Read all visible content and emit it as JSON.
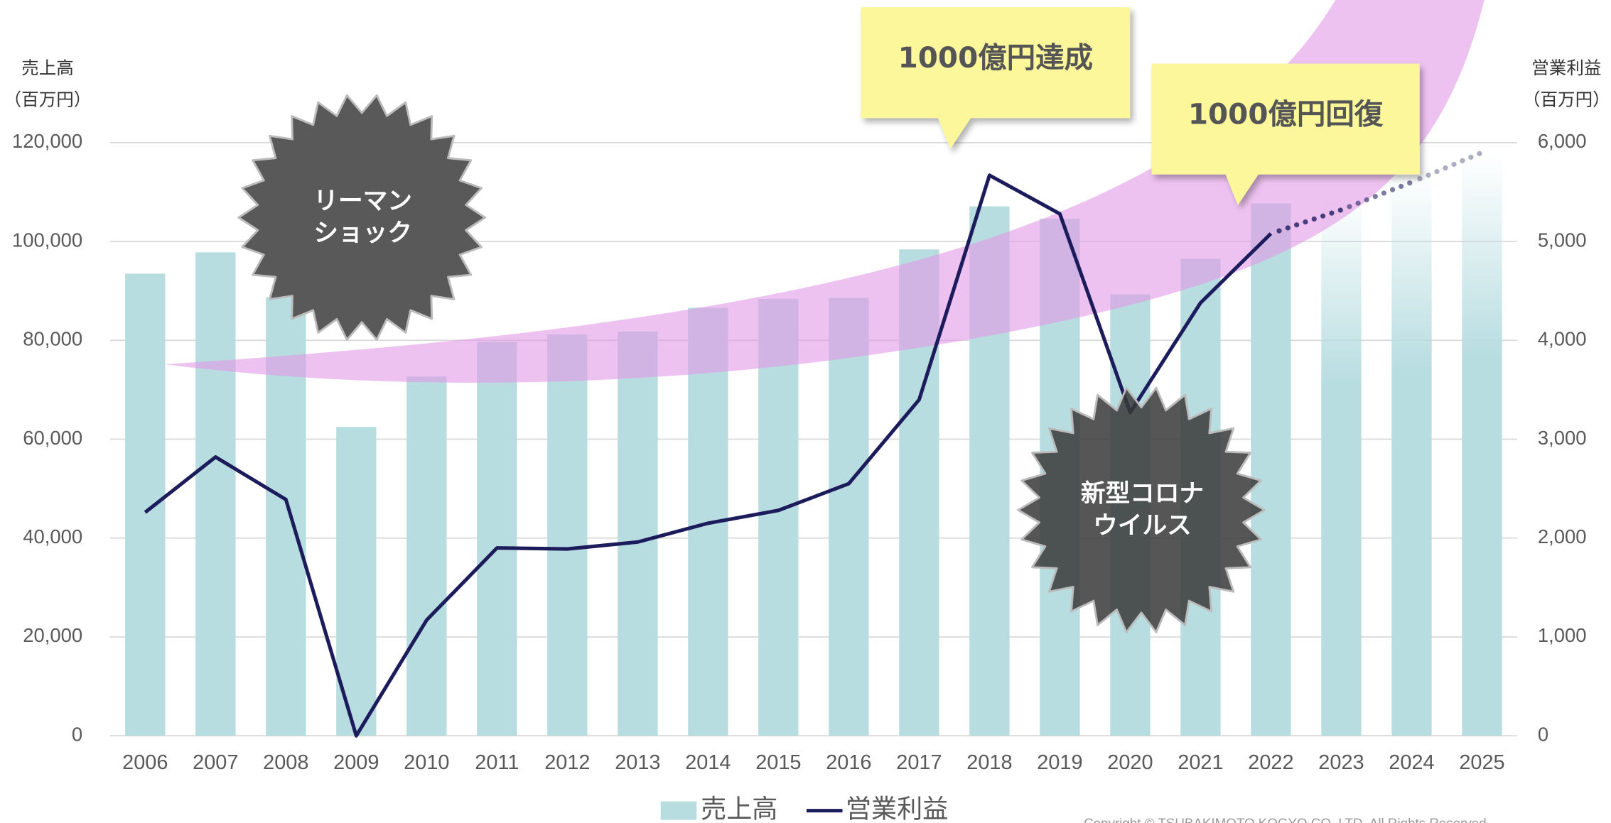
{
  "chart_data": {
    "type": "bar-line",
    "categories": [
      "2006",
      "2007",
      "2008",
      "2009",
      "2010",
      "2011",
      "2012",
      "2013",
      "2014",
      "2015",
      "2016",
      "2017",
      "2018",
      "2019",
      "2020",
      "2021",
      "2022",
      "2023",
      "2024",
      "2025"
    ],
    "series": [
      {
        "name": "売上高",
        "type": "bar",
        "color": "#b8dde1",
        "values": [
          93500,
          97800,
          88700,
          62500,
          72700,
          79700,
          81200,
          81800,
          86600,
          88400,
          88600,
          98400,
          107100,
          104600,
          89300,
          96500,
          107700,
          110000,
          114000,
          118000
        ]
      },
      {
        "name": "営業利益",
        "type": "line",
        "axis": "y2",
        "color": "#1c1b5b",
        "values": [
          2260,
          2820,
          2390,
          0,
          1170,
          1900,
          1890,
          1960,
          2150,
          2280,
          2550,
          3400,
          5670,
          5280,
          3270,
          4380,
          5080,
          5320,
          5600,
          5900
        ]
      }
    ],
    "forecast_from": 17,
    "ylim": [
      0,
      120000
    ],
    "yticks": [
      0,
      {
        "value": 20000,
        "label": "20,000"
      },
      {
        "value": 40000,
        "label": "40,000"
      },
      {
        "value": 60000,
        "label": "60,000"
      },
      {
        "value": 80000,
        "label": "80,000"
      },
      {
        "value": 100000,
        "label": "100,000"
      },
      {
        "value": 120000,
        "label": "120,000"
      }
    ],
    "y2lim": [
      0,
      6000
    ],
    "y2ticks": [
      0,
      {
        "value": 1000,
        "label": "1,000"
      },
      {
        "value": 2000,
        "label": "2,000"
      },
      {
        "value": 3000,
        "label": "3,000"
      },
      {
        "value": 4000,
        "label": "4,000"
      },
      {
        "value": 5000,
        "label": "5,000"
      },
      {
        "value": 6000,
        "label": "6,000"
      }
    ],
    "grid": true,
    "y_label": "売上高",
    "y_unit": "（百万円）",
    "y2_label": "営業利益",
    "y2_unit": "（百万円）",
    "annotations": {
      "lehman": [
        "リーマン",
        "ショック"
      ],
      "corona": [
        "新型コロナ",
        "ウイルス"
      ],
      "callout_1": "1000億円達成",
      "callout_2": "1000億円回復"
    },
    "copyright": "Copyright © TSUBAKIMOTO KOGYO CO.,LTD. All Rights Reserved."
  }
}
